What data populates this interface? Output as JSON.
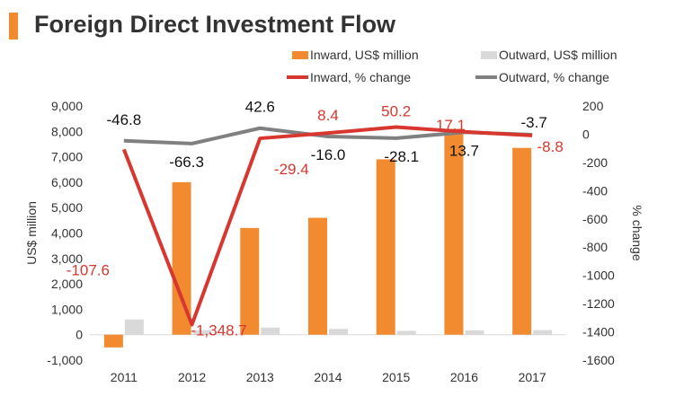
{
  "title": "Foreign Direct Investment Flow",
  "colors": {
    "inward_bar": "#f28a30",
    "outward_bar": "#d9d9d9",
    "inward_line": "#d7372f",
    "outward_line": "#808080",
    "title_accent": "#f28a30"
  },
  "chart_data": {
    "type": "bar",
    "categories": [
      "2011",
      "2012",
      "2013",
      "2014",
      "2015",
      "2016",
      "2017"
    ],
    "ylabel": "US$ million",
    "y2label": "% change",
    "ylim": [
      -1000,
      9000
    ],
    "y2lim": [
      -1600,
      200
    ],
    "yticks": [
      "-1,000",
      "0",
      "1,000",
      "2,000",
      "3,000",
      "4,000",
      "5,000",
      "6,000",
      "7,000",
      "8,000",
      "9,000"
    ],
    "y2ticks": [
      "-1600",
      "-1400",
      "-1200",
      "-1000",
      "-800",
      "-600",
      "-400",
      "-200",
      "0",
      "200"
    ],
    "legend": [
      {
        "name": "Inward, US$ million",
        "kind": "bar",
        "color": "#f28a30"
      },
      {
        "name": "Outward, US$ million",
        "kind": "bar",
        "color": "#d9d9d9"
      },
      {
        "name": "Inward, % change",
        "kind": "line",
        "color": "#d7372f"
      },
      {
        "name": "Outward, % change",
        "kind": "line",
        "color": "#808080"
      }
    ],
    "series": [
      {
        "name": "Inward, US$ million",
        "type": "bar",
        "axis": "left",
        "values": [
          -500,
          6000,
          4200,
          4600,
          6900,
          8100,
          7350
        ]
      },
      {
        "name": "Outward, US$ million",
        "type": "bar",
        "axis": "left",
        "values": [
          600,
          180,
          280,
          230,
          150,
          170,
          180
        ]
      },
      {
        "name": "Inward, % change",
        "type": "line",
        "axis": "right",
        "values": [
          -107.6,
          -1348.7,
          -29.4,
          8.4,
          50.2,
          17.1,
          -8.8
        ],
        "labels": [
          "-107.6",
          "-1,348.7",
          "-29.4",
          "8.4",
          "50.2",
          "17.1",
          "-8.8"
        ]
      },
      {
        "name": "Outward, % change",
        "type": "line",
        "axis": "right",
        "values": [
          -46.8,
          -66.3,
          42.6,
          -16.0,
          -28.1,
          13.7,
          -3.7
        ],
        "labels": [
          "-46.8",
          "-66.3",
          "42.6",
          "-16.0",
          "-28.1",
          "13.7",
          "-3.7"
        ]
      }
    ]
  }
}
